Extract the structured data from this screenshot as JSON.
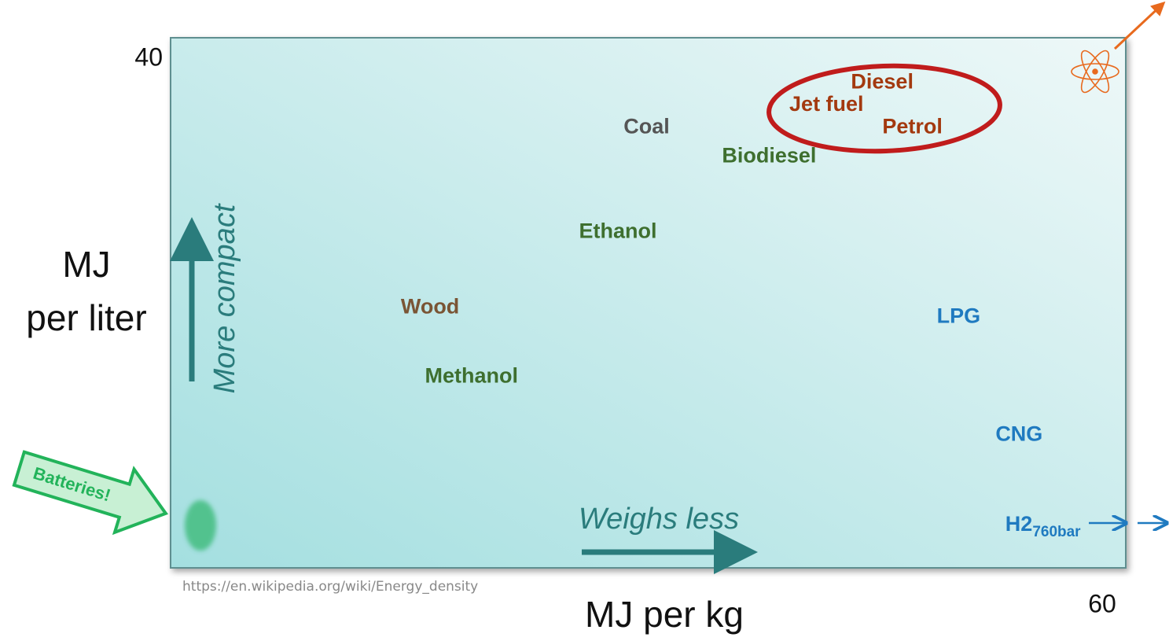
{
  "chart_data": {
    "type": "scatter",
    "xlabel": "MJ per kg",
    "ylabel_lines": [
      "MJ",
      "per liter"
    ],
    "xlim": [
      0,
      60
    ],
    "ylim": [
      0,
      40
    ],
    "xticks": [
      60
    ],
    "yticks": [
      40
    ],
    "labels": [
      "Diesel",
      "Jet fuel",
      "Petrol",
      "Coal",
      "Biodiesel",
      "Ethanol",
      "Wood",
      "LPG",
      "Methanol",
      "CNG",
      "H2"
    ],
    "x": [
      44.7,
      41.2,
      46.6,
      29.9,
      37.6,
      28.1,
      16.3,
      49.5,
      18.9,
      53.3,
      54.8
    ],
    "values": [
      36.6,
      34.9,
      33.2,
      33.2,
      31.0,
      25.3,
      19.6,
      18.9,
      14.4,
      10.0,
      3.2
    ],
    "colors": [
      "#a3390f",
      "#a3390f",
      "#a3390f",
      "#555555",
      "#3e6f2f",
      "#3e6f2f",
      "#7a5535",
      "#1f7ac0",
      "#3e6f2f",
      "#1f7ac0",
      "#1f7ac0"
    ],
    "h2_subscript": "760bar",
    "x_hint": "Weighs less",
    "y_hint": "More compact",
    "batteries": "Batteries!",
    "source": "https://en.wikipedia.org/wiki/Energy_density"
  }
}
